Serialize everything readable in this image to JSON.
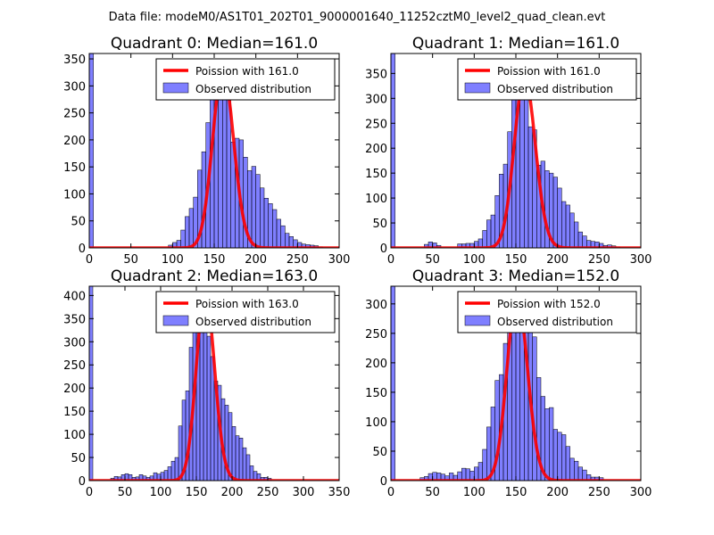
{
  "suptitle": "Data file: modeM0/AS1T01_202T01_9000001640_11252cztM0_level2_quad_clean.evt",
  "chart_data": [
    {
      "type": "bar",
      "title": "Quadrant 0: Median=161.0",
      "xlim": [
        0,
        300
      ],
      "ylim": [
        0,
        360
      ],
      "xticks": [
        0,
        50,
        100,
        150,
        200,
        250,
        300
      ],
      "yticks": [
        0,
        50,
        100,
        150,
        200,
        250,
        300,
        350
      ],
      "bin_width": 5,
      "bins": [
        [
          0,
          360
        ],
        [
          95,
          5
        ],
        [
          100,
          10
        ],
        [
          105,
          14
        ],
        [
          110,
          33
        ],
        [
          115,
          58
        ],
        [
          120,
          73
        ],
        [
          125,
          94
        ],
        [
          130,
          144
        ],
        [
          135,
          178
        ],
        [
          140,
          232
        ],
        [
          145,
          290
        ],
        [
          150,
          328
        ],
        [
          155,
          300
        ],
        [
          160,
          296
        ],
        [
          165,
          277
        ],
        [
          170,
          196
        ],
        [
          175,
          203
        ],
        [
          180,
          200
        ],
        [
          185,
          168
        ],
        [
          190,
          143
        ],
        [
          195,
          151
        ],
        [
          200,
          136
        ],
        [
          205,
          111
        ],
        [
          210,
          92
        ],
        [
          215,
          82
        ],
        [
          220,
          71
        ],
        [
          225,
          53
        ],
        [
          230,
          41
        ],
        [
          235,
          27
        ],
        [
          240,
          21
        ],
        [
          245,
          15
        ],
        [
          250,
          10
        ],
        [
          255,
          7
        ],
        [
          260,
          6
        ],
        [
          265,
          5
        ],
        [
          270,
          4
        ],
        [
          275,
          2
        ]
      ],
      "poisson_mean": 161.0,
      "legend": [
        "Poission with 161.0",
        "Observed distribution"
      ]
    },
    {
      "type": "bar",
      "title": "Quadrant 1: Median=161.0",
      "xlim": [
        0,
        300
      ],
      "ylim": [
        0,
        390
      ],
      "xticks": [
        0,
        50,
        100,
        150,
        200,
        250,
        300
      ],
      "yticks": [
        0,
        50,
        100,
        150,
        200,
        250,
        300,
        350
      ],
      "bin_width": 5,
      "bins": [
        [
          0,
          390
        ],
        [
          40,
          7
        ],
        [
          45,
          12
        ],
        [
          50,
          10
        ],
        [
          55,
          5
        ],
        [
          80,
          8
        ],
        [
          85,
          8
        ],
        [
          90,
          9
        ],
        [
          95,
          9
        ],
        [
          100,
          13
        ],
        [
          105,
          18
        ],
        [
          110,
          35
        ],
        [
          115,
          56
        ],
        [
          120,
          66
        ],
        [
          125,
          105
        ],
        [
          130,
          148
        ],
        [
          135,
          168
        ],
        [
          140,
          233
        ],
        [
          145,
          298
        ],
        [
          150,
          314
        ],
        [
          155,
          342
        ],
        [
          160,
          300
        ],
        [
          165,
          243
        ],
        [
          170,
          237
        ],
        [
          175,
          166
        ],
        [
          180,
          174
        ],
        [
          185,
          155
        ],
        [
          190,
          150
        ],
        [
          195,
          142
        ],
        [
          200,
          120
        ],
        [
          205,
          93
        ],
        [
          210,
          86
        ],
        [
          215,
          70
        ],
        [
          220,
          52
        ],
        [
          225,
          32
        ],
        [
          230,
          24
        ],
        [
          235,
          15
        ],
        [
          240,
          13
        ],
        [
          245,
          12
        ],
        [
          250,
          9
        ],
        [
          255,
          5
        ],
        [
          260,
          6
        ],
        [
          265,
          4
        ],
        [
          270,
          2
        ]
      ],
      "poisson_mean": 161.0,
      "legend": [
        "Poission with 161.0",
        "Observed distribution"
      ]
    },
    {
      "type": "bar",
      "title": "Quadrant 2: Median=163.0",
      "xlim": [
        0,
        350
      ],
      "ylim": [
        0,
        420
      ],
      "xticks": [
        0,
        50,
        100,
        150,
        200,
        250,
        300,
        350
      ],
      "yticks": [
        0,
        50,
        100,
        150,
        200,
        250,
        300,
        350,
        400
      ],
      "bin_width": 5,
      "bins": [
        [
          0,
          420
        ],
        [
          30,
          5
        ],
        [
          35,
          9
        ],
        [
          40,
          8
        ],
        [
          45,
          13
        ],
        [
          50,
          15
        ],
        [
          55,
          13
        ],
        [
          60,
          7
        ],
        [
          65,
          8
        ],
        [
          70,
          13
        ],
        [
          75,
          10
        ],
        [
          80,
          7
        ],
        [
          85,
          10
        ],
        [
          90,
          17
        ],
        [
          95,
          14
        ],
        [
          100,
          18
        ],
        [
          105,
          22
        ],
        [
          110,
          30
        ],
        [
          115,
          42
        ],
        [
          120,
          50
        ],
        [
          125,
          118
        ],
        [
          130,
          174
        ],
        [
          135,
          194
        ],
        [
          140,
          288
        ],
        [
          145,
          333
        ],
        [
          150,
          405
        ],
        [
          155,
          355
        ],
        [
          160,
          354
        ],
        [
          165,
          312
        ],
        [
          170,
          268
        ],
        [
          175,
          215
        ],
        [
          180,
          206
        ],
        [
          185,
          177
        ],
        [
          190,
          163
        ],
        [
          195,
          147
        ],
        [
          200,
          117
        ],
        [
          205,
          97
        ],
        [
          210,
          92
        ],
        [
          215,
          71
        ],
        [
          220,
          56
        ],
        [
          225,
          32
        ],
        [
          230,
          20
        ],
        [
          235,
          15
        ],
        [
          240,
          7
        ],
        [
          245,
          7
        ],
        [
          250,
          5
        ]
      ],
      "poisson_mean": 163.0,
      "legend": [
        "Poission with 163.0",
        "Observed distribution"
      ]
    },
    {
      "type": "bar",
      "title": "Quadrant 3: Median=152.0",
      "xlim": [
        0,
        300
      ],
      "ylim": [
        0,
        330
      ],
      "xticks": [
        0,
        50,
        100,
        150,
        200,
        250,
        300
      ],
      "yticks": [
        0,
        50,
        100,
        150,
        200,
        250,
        300
      ],
      "bin_width": 5,
      "bins": [
        [
          0,
          330
        ],
        [
          35,
          5
        ],
        [
          40,
          7
        ],
        [
          45,
          12
        ],
        [
          50,
          14
        ],
        [
          55,
          13
        ],
        [
          60,
          11
        ],
        [
          65,
          8
        ],
        [
          70,
          13
        ],
        [
          75,
          9
        ],
        [
          80,
          15
        ],
        [
          85,
          21
        ],
        [
          90,
          20
        ],
        [
          95,
          16
        ],
        [
          100,
          23
        ],
        [
          105,
          31
        ],
        [
          110,
          53
        ],
        [
          115,
          91
        ],
        [
          120,
          125
        ],
        [
          125,
          170
        ],
        [
          130,
          180
        ],
        [
          135,
          233
        ],
        [
          140,
          257
        ],
        [
          145,
          300
        ],
        [
          150,
          313
        ],
        [
          155,
          312
        ],
        [
          160,
          302
        ],
        [
          165,
          286
        ],
        [
          170,
          244
        ],
        [
          175,
          175
        ],
        [
          180,
          143
        ],
        [
          185,
          122
        ],
        [
          190,
          124
        ],
        [
          195,
          87
        ],
        [
          200,
          82
        ],
        [
          205,
          78
        ],
        [
          210,
          58
        ],
        [
          215,
          38
        ],
        [
          220,
          33
        ],
        [
          225,
          23
        ],
        [
          230,
          18
        ],
        [
          235,
          10
        ],
        [
          240,
          6
        ],
        [
          245,
          6
        ],
        [
          250,
          5
        ]
      ],
      "poisson_mean": 152.0,
      "legend": [
        "Poission with 152.0",
        "Observed distribution"
      ]
    }
  ]
}
